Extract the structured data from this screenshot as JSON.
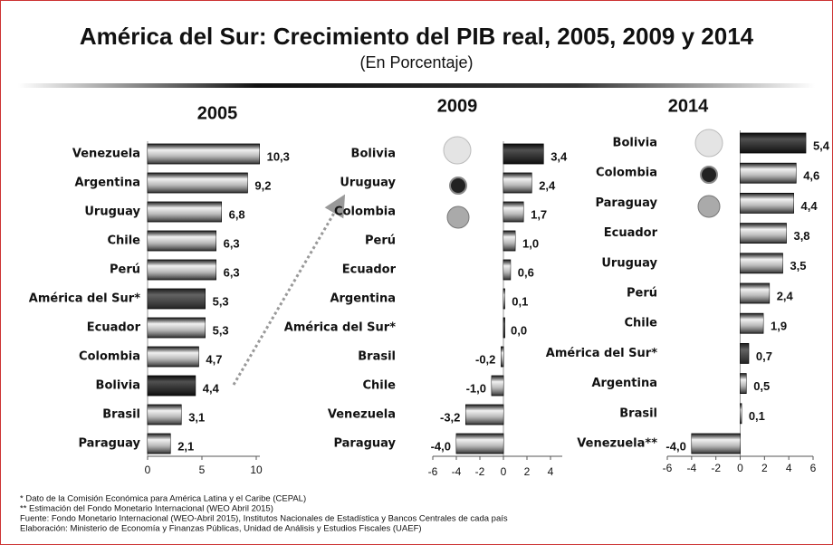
{
  "header": {
    "title": "América del Sur: Crecimiento del PIB real, 2005, 2009 y 2014",
    "subtitle": "(En Porcentaje)"
  },
  "notes": [
    "* Dato de la Comisión Económica para América Latina y el Caribe (CEPAL)",
    "** Estimación del Fondo Monetario Internacional (WEO Abril 2015)",
    "Fuente: Fondo Monetario Internacional (WEO-Abril 2015), Institutos Nacionales de Estadística y Bancos Centrales de cada país",
    "Elaboración: Ministerio de Economía y Finanzas Públicas, Unidad de Análisis y Estudios Fiscales (UAEF)"
  ],
  "chart_data": [
    {
      "type": "bar",
      "title": "2005",
      "categories": [
        "Venezuela",
        "Argentina",
        "Uruguay",
        "Chile",
        "Perú",
        "América del Sur*",
        "Ecuador",
        "Colombia",
        "Bolivia",
        "Brasil",
        "Paraguay"
      ],
      "values": [
        10.3,
        9.2,
        6.8,
        6.3,
        6.3,
        5.3,
        5.3,
        4.7,
        4.4,
        3.1,
        2.1
      ],
      "value_labels": [
        "10,3",
        "9,2",
        "6,8",
        "6,3",
        "6,3",
        "5,3",
        "5,3",
        "4,7",
        "4,4",
        "3,1",
        "2,1"
      ],
      "colors": [
        "#7a7a7a",
        "#7a7a7a",
        "#7a7a7a",
        "#7a7a7a",
        "#7a7a7a",
        "#2a2a2a",
        "#7a7a7a",
        "#7a7a7a",
        "#111111",
        "#7a7a7a",
        "#7a7a7a"
      ],
      "xlim": [
        0,
        12
      ],
      "xticks": [
        0,
        5,
        10
      ]
    },
    {
      "type": "bar",
      "title": "2009",
      "categories": [
        "Bolivia",
        "Uruguay",
        "Colombia",
        "Perú",
        "Ecuador",
        "Argentina",
        "América del Sur*",
        "Brasil",
        "Chile",
        "Venezuela",
        "Paraguay"
      ],
      "values": [
        3.4,
        2.4,
        1.7,
        1.0,
        0.6,
        0.1,
        0.0,
        -0.2,
        -1.0,
        -3.2,
        -4.0
      ],
      "value_labels": [
        "3,4",
        "2,4",
        "1,7",
        "1,0",
        "0,6",
        "0,1",
        "0,0",
        "-0,2",
        "-1,0",
        "-3,2",
        "-4,0"
      ],
      "colors": [
        "#111111",
        "#7a7a7a",
        "#7a7a7a",
        "#7a7a7a",
        "#7a7a7a",
        "#7a7a7a",
        "#2a2a2a",
        "#7a7a7a",
        "#7a7a7a",
        "#7a7a7a",
        "#7a7a7a"
      ],
      "xlim": [
        -6,
        5
      ],
      "xticks": [
        -6,
        -4,
        -2,
        0,
        2,
        4
      ]
    },
    {
      "type": "bar",
      "title": "2014",
      "categories": [
        "Bolivia",
        "Colombia",
        "Paraguay",
        "Ecuador",
        "Uruguay",
        "Perú",
        "Chile",
        "América del Sur*",
        "Argentina",
        "Brasil",
        "Venezuela**"
      ],
      "values": [
        5.4,
        4.6,
        4.4,
        3.8,
        3.5,
        2.4,
        1.9,
        0.7,
        0.5,
        0.1,
        -4.0
      ],
      "value_labels": [
        "5,4",
        "4,6",
        "4,4",
        "3,8",
        "3,5",
        "2,4",
        "1,9",
        "0,7",
        "0,5",
        "0,1",
        "-4,0"
      ],
      "colors": [
        "#111111",
        "#7a7a7a",
        "#7a7a7a",
        "#7a7a7a",
        "#7a7a7a",
        "#7a7a7a",
        "#7a7a7a",
        "#2a2a2a",
        "#7a7a7a",
        "#7a7a7a",
        "#7a7a7a"
      ],
      "xlim": [
        -6,
        6
      ],
      "xticks": [
        -6,
        -4,
        -2,
        0,
        2,
        4,
        6
      ]
    }
  ]
}
